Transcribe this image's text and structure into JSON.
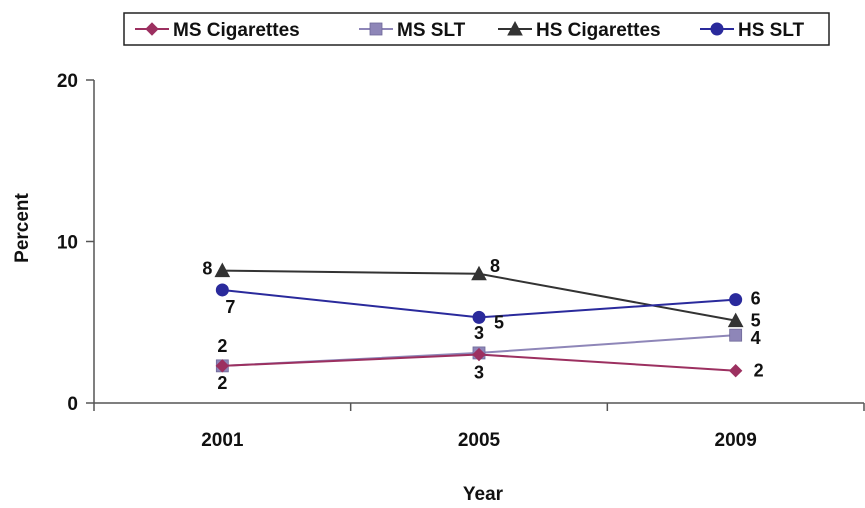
{
  "chart_data": {
    "type": "line",
    "xlabel": "Year",
    "ylabel": "Percent",
    "categories": [
      "2001",
      "2005",
      "2009"
    ],
    "ylim": [
      0,
      20
    ],
    "yticks": [
      "0",
      "10",
      "20"
    ],
    "grid": false,
    "legend_position": "top",
    "series": [
      {
        "name": "MS Cigarettes",
        "values": [
          2.3,
          3.0,
          2.0
        ],
        "labels": [
          "2",
          "3",
          "2"
        ],
        "color": "#9c3060",
        "marker": "diamond"
      },
      {
        "name": "MS SLT",
        "values": [
          2.3,
          3.1,
          4.2
        ],
        "labels": [
          "2",
          "3",
          "4"
        ],
        "color": "#8e86b8",
        "marker": "square"
      },
      {
        "name": "HS Cigarettes",
        "values": [
          8.2,
          8.0,
          5.1
        ],
        "labels": [
          "8",
          "8",
          "5"
        ],
        "color": "#333333",
        "marker": "triangle"
      },
      {
        "name": "HS SLT",
        "values": [
          7.0,
          5.3,
          6.4
        ],
        "labels": [
          "7",
          "5",
          "6"
        ],
        "color": "#2a2a9c",
        "marker": "circle"
      }
    ]
  }
}
